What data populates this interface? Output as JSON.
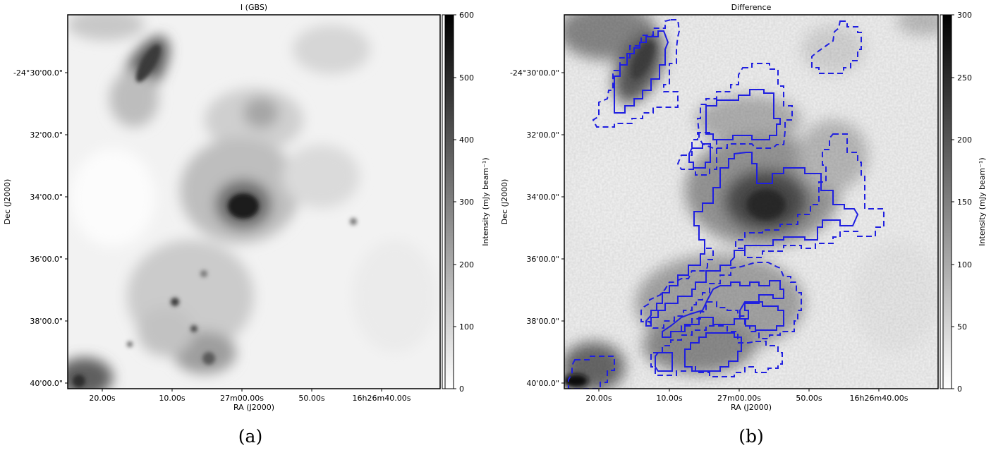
{
  "figure": {
    "panels": [
      {
        "title": "I (GBS)",
        "caption": "(a)",
        "xlabel": "RA (J2000)",
        "ylabel": "Dec (J2000)",
        "xticks": [
          "20.00s",
          "10.00s",
          "27m00.00s",
          "50.00s",
          "16h26m40.00s"
        ],
        "yticks": [
          "-24°30'00.0\"",
          "32'00.0\"",
          "34'00.0\"",
          "36'00.0\"",
          "38'00.0\"",
          "40'00.0\""
        ],
        "colorbar": {
          "label": "Intensity (mJy beam⁻¹)",
          "ticks": [
            "0",
            "100",
            "200",
            "300",
            "400",
            "500",
            "600"
          ]
        }
      },
      {
        "title": "Difference",
        "caption": "(b)",
        "xlabel": "RA (J2000)",
        "ylabel": "Dec (J2000)",
        "xticks": [
          "20.00s",
          "10.00s",
          "27m00.00s",
          "50.00s",
          "16h26m40.00s"
        ],
        "yticks": [
          "-24°30'00.0\"",
          "32'00.0\"",
          "34'00.0\"",
          "36'00.0\"",
          "38'00.0\"",
          "40'00.0\""
        ],
        "colorbar": {
          "label": "Intensity (mJy beam⁻¹)",
          "ticks": [
            "0",
            "50",
            "100",
            "150",
            "200",
            "250",
            "300"
          ]
        }
      }
    ]
  },
  "chart_data": [
    {
      "type": "heatmap",
      "title": "I (GBS)",
      "xlabel": "RA (J2000)",
      "ylabel": "Dec (J2000)",
      "colormap": "gray_r",
      "clim": [
        0,
        600
      ],
      "colorbar_ticks": [
        0,
        100,
        200,
        300,
        400,
        500,
        600
      ]
    },
    {
      "type": "heatmap",
      "title": "Difference",
      "xlabel": "RA (J2000)",
      "ylabel": "Dec (J2000)",
      "colormap": "gray_r",
      "clim": [
        0,
        300
      ],
      "colorbar_ticks": [
        0,
        50,
        100,
        150,
        200,
        250,
        300
      ],
      "contour_color": "#1f1fe0",
      "contour_styles": [
        "solid",
        "dashed"
      ]
    }
  ]
}
